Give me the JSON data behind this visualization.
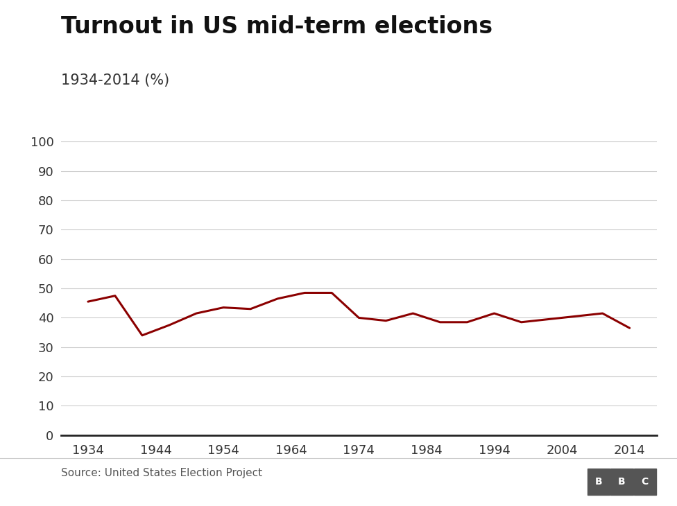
{
  "title": "Turnout in US mid-term elections",
  "subtitle": "1934-2014 (%)",
  "source": "Source: United States Election Project",
  "years": [
    1934,
    1938,
    1942,
    1946,
    1950,
    1954,
    1958,
    1962,
    1966,
    1970,
    1974,
    1978,
    1982,
    1986,
    1990,
    1994,
    1998,
    2002,
    2006,
    2010,
    2014
  ],
  "turnout": [
    45.5,
    47.5,
    34.0,
    37.5,
    41.5,
    43.5,
    43.0,
    46.5,
    48.5,
    48.5,
    40.0,
    39.0,
    41.5,
    38.5,
    38.5,
    41.5,
    38.5,
    39.5,
    40.5,
    41.5,
    36.5
  ],
  "line_color": "#8B0000",
  "bg_color": "#ffffff",
  "grid_color": "#cccccc",
  "axis_color": "#333333",
  "ylim": [
    0,
    100
  ],
  "yticks": [
    0,
    10,
    20,
    30,
    40,
    50,
    60,
    70,
    80,
    90,
    100
  ],
  "xticks": [
    1934,
    1944,
    1954,
    1964,
    1974,
    1984,
    1994,
    2004,
    2014
  ],
  "title_fontsize": 24,
  "subtitle_fontsize": 15,
  "tick_fontsize": 13,
  "source_fontsize": 11,
  "line_width": 2.2
}
